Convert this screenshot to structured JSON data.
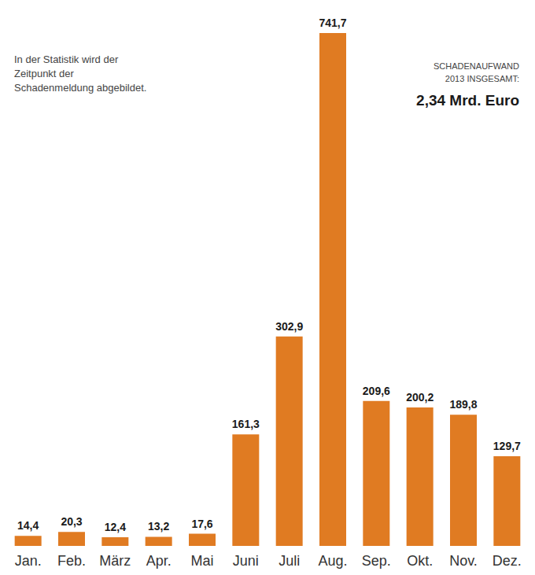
{
  "chart_data": {
    "type": "bar",
    "title": "2,34 Mrd. Euro",
    "subtitle": "SCHADENAUFWAND 2013 INSGESAMT:",
    "annotations": [
      "In der Statistik wird der Zeitpunkt der Schadenmeldung abgebildet."
    ],
    "categories": [
      "Jan.",
      "Feb.",
      "März",
      "Apr.",
      "Mai",
      "Juni",
      "Juli",
      "Aug.",
      "Sep.",
      "Okt.",
      "Nov.",
      "Dez."
    ],
    "values": [
      14.4,
      20.3,
      12.4,
      13.2,
      17.6,
      161.3,
      302.9,
      741.7,
      209.6,
      200.2,
      189.8,
      129.7
    ],
    "value_labels": [
      "14,4",
      "20,3",
      "12,4",
      "13,2",
      "17,6",
      "161,3",
      "302,9",
      "741,7",
      "209,6",
      "200,2",
      "189,8",
      "129,7"
    ],
    "color": "#e07b22",
    "ylim": [
      0,
      760
    ],
    "grid": false,
    "data_labels": true,
    "tick_labels": "x"
  }
}
